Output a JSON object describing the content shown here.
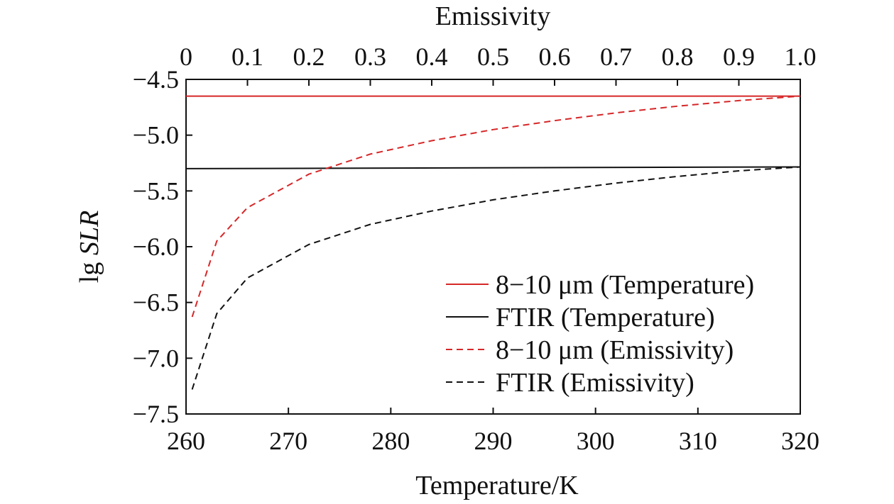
{
  "chart_data": {
    "type": "line",
    "top_xlabel": "Emissivity",
    "top_xticks": [
      "0",
      "0.1",
      "0.2",
      "0.3",
      "0.4",
      "0.5",
      "0.6",
      "0.7",
      "0.8",
      "0.9",
      "1.0"
    ],
    "top_xlim": [
      0,
      1.0
    ],
    "xlabel": "Temperature/K",
    "xticks": [
      "260",
      "270",
      "280",
      "290",
      "300",
      "310",
      "320"
    ],
    "xlim": [
      260,
      320
    ],
    "ylabel_prefix": "lg ",
    "ylabel_italic": "SLR",
    "yticks": [
      "−4.5",
      "−5.0",
      "−5.5",
      "−6.0",
      "−6.5",
      "−7.0",
      "−7.5"
    ],
    "ylim": [
      -7.5,
      -4.5
    ],
    "grid": false,
    "legend_position": "bottom-right",
    "series": [
      {
        "name": "8−10 μm (Temperature)",
        "axis": "bottom",
        "color": "#d62728",
        "dash": "solid",
        "x": [
          260,
          320
        ],
        "y": [
          -4.65,
          -4.65
        ]
      },
      {
        "name": "FTIR (Temperature)",
        "axis": "bottom",
        "color": "#111111",
        "dash": "solid",
        "x": [
          260,
          280,
          300,
          320
        ],
        "y": [
          -5.3,
          -5.295,
          -5.29,
          -5.285
        ]
      },
      {
        "name": "8−10 μm (Emissivity)",
        "axis": "top",
        "color": "#d62728",
        "dash": "dashed",
        "x": [
          0.01,
          0.05,
          0.1,
          0.2,
          0.3,
          0.4,
          0.5,
          0.6,
          0.7,
          0.8,
          0.9,
          1.0
        ],
        "y": [
          -6.63,
          -5.95,
          -5.65,
          -5.35,
          -5.17,
          -5.05,
          -4.95,
          -4.87,
          -4.8,
          -4.74,
          -4.69,
          -4.65
        ]
      },
      {
        "name": "FTIR (Emissivity)",
        "axis": "top",
        "color": "#111111",
        "dash": "dashed",
        "x": [
          0.01,
          0.05,
          0.1,
          0.2,
          0.3,
          0.4,
          0.5,
          0.6,
          0.7,
          0.8,
          0.9,
          1.0
        ],
        "y": [
          -7.28,
          -6.6,
          -6.28,
          -5.98,
          -5.8,
          -5.68,
          -5.58,
          -5.5,
          -5.43,
          -5.37,
          -5.32,
          -5.285
        ]
      }
    ]
  }
}
